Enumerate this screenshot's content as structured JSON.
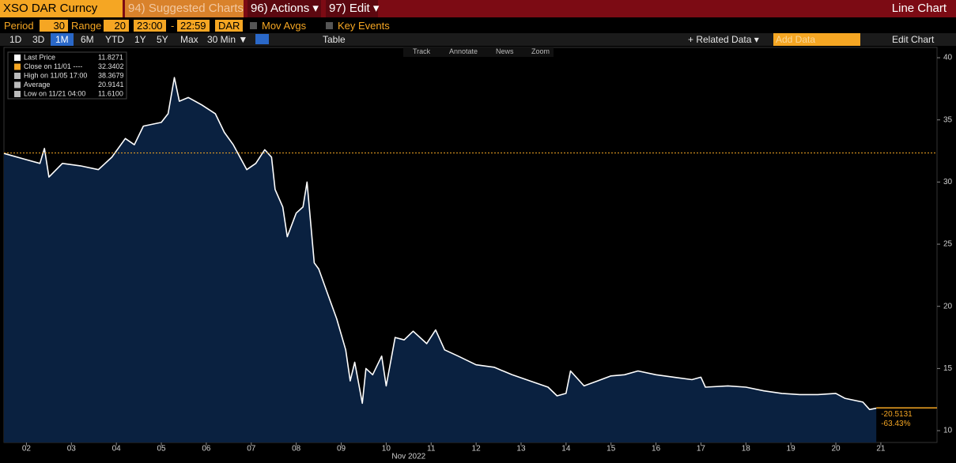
{
  "header": {
    "security": "XSO DAR Curncy",
    "suggested": "94) Suggested Charts",
    "actions": "96) Actions ▾",
    "edit": "97) Edit ▾",
    "view": "Line Chart"
  },
  "settings": {
    "period_label": "Period",
    "period": "30",
    "range_label": "Range",
    "range": "20",
    "time_from": "23:00",
    "dash": "-",
    "time_to": "22:59",
    "currency": "DAR",
    "mov_avgs": "Mov Avgs",
    "key_events": "Key Events"
  },
  "toolbar": {
    "ranges": [
      "1D",
      "3D",
      "1M",
      "6M",
      "YTD",
      "1Y",
      "5Y",
      "Max"
    ],
    "interval": "30 Min ▼",
    "table": "Table",
    "related": "+ Related Data ▾",
    "add_data": "Add Data",
    "edit_chart": "Edit Chart"
  },
  "chart_tools": [
    "Track",
    "Annotate",
    "News",
    "Zoom"
  ],
  "chart_data": {
    "type": "line",
    "xlabel": "Nov 2022",
    "x": [
      1.5,
      2.0,
      2.3,
      2.4,
      2.5,
      2.8,
      3.2,
      3.6,
      3.9,
      4.2,
      4.4,
      4.6,
      5.0,
      5.15,
      5.29,
      5.4,
      5.6,
      5.9,
      6.2,
      6.4,
      6.6,
      6.9,
      7.1,
      7.3,
      7.45,
      7.53,
      7.7,
      7.8,
      8.0,
      8.15,
      8.24,
      8.4,
      8.5,
      8.7,
      8.9,
      9.1,
      9.2,
      9.3,
      9.47,
      9.55,
      9.7,
      9.9,
      10.0,
      10.2,
      10.4,
      10.6,
      10.9,
      11.1,
      11.3,
      11.6,
      12.0,
      12.4,
      12.8,
      13.2,
      13.6,
      13.8,
      14.0,
      14.1,
      14.4,
      14.7,
      15.0,
      15.3,
      15.6,
      16.0,
      16.4,
      16.8,
      17.0,
      17.1,
      17.6,
      18.0,
      18.4,
      18.8,
      19.2,
      19.6,
      20.0,
      20.2,
      20.6,
      20.75,
      20.9
    ],
    "series": [
      {
        "name": "Last Price",
        "color": "#ffffff",
        "values": [
          32.3,
          31.8,
          31.5,
          32.7,
          30.4,
          31.5,
          31.3,
          31.0,
          32.0,
          33.5,
          33.0,
          34.5,
          34.8,
          35.5,
          38.4,
          36.5,
          36.8,
          36.2,
          35.5,
          34.0,
          33.0,
          31.0,
          31.5,
          32.6,
          32.0,
          29.4,
          28.0,
          25.6,
          27.5,
          28.0,
          30.0,
          23.5,
          23.0,
          21.0,
          19.0,
          16.5,
          14.0,
          15.5,
          12.2,
          15.0,
          14.5,
          16.0,
          13.6,
          17.5,
          17.3,
          18.0,
          17.0,
          18.1,
          16.5,
          16.0,
          15.3,
          15.1,
          14.5,
          14.0,
          13.5,
          12.8,
          13.0,
          14.8,
          13.6,
          14.0,
          14.4,
          14.5,
          14.8,
          14.5,
          14.3,
          14.1,
          14.3,
          13.5,
          13.6,
          13.5,
          13.2,
          13.0,
          12.9,
          12.9,
          13.0,
          12.6,
          12.3,
          11.7,
          11.8
        ]
      }
    ],
    "xlim": [
      1.5,
      22.25
    ],
    "ylim": [
      9.05,
      40.83
    ],
    "yticks": [
      10,
      15,
      20,
      25,
      30,
      35,
      40
    ],
    "xticks": [
      {
        "value": 2,
        "label": "02"
      },
      {
        "value": 3,
        "label": "03"
      },
      {
        "value": 4,
        "label": "04"
      },
      {
        "value": 5,
        "label": "05"
      },
      {
        "value": 6,
        "label": "06"
      },
      {
        "value": 7,
        "label": "07"
      },
      {
        "value": 8,
        "label": "08"
      },
      {
        "value": 9,
        "label": "09"
      },
      10,
      11,
      12,
      13,
      14,
      15,
      16,
      17,
      18,
      19,
      20,
      21
    ],
    "legend": [
      {
        "label": "Last Price",
        "value": 11.8271,
        "color": "#ffffff"
      },
      {
        "label": "Close on 11/01 ----",
        "value": 32.3402,
        "color": "#f5a623"
      },
      {
        "label": "High on 11/05 17:00",
        "value": 38.3679,
        "color": "#bbbbbb"
      },
      {
        "label": "Average",
        "value": 20.9141,
        "color": "#bbbbbb"
      },
      {
        "label": "Low on 11/21 04:00",
        "value": {
          "value": 11.61,
          "label": "11.6100"
        },
        "color": "#bbbbbb"
      }
    ],
    "change": [
      -20.5131,
      {
        "value": -63.43,
        "label": "-63.43%"
      }
    ],
    "area_color": "#0a2140",
    "reference_color": "#f5a623"
  }
}
